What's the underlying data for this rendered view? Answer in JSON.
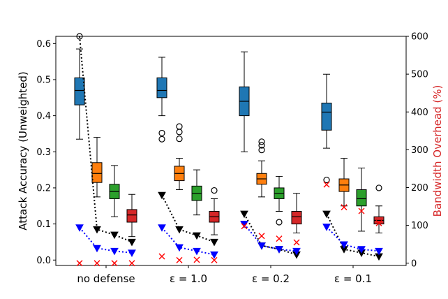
{
  "chart_data": {
    "type": "box",
    "title": "",
    "ylabel": "Attack Accuracy (Unweighted)",
    "y2label": "Bandwidth Overhead (%)",
    "ylim": [
      -0.015,
      0.62
    ],
    "y2lim": [
      -6,
      600
    ],
    "yticks": [
      "0.0",
      "0.1",
      "0.2",
      "0.3",
      "0.4",
      "0.5",
      "0.6"
    ],
    "y2ticks": [
      "0",
      "100",
      "200",
      "300",
      "400",
      "500",
      "600"
    ],
    "groups": [
      "no defense",
      "ε = 1.0",
      "ε = 0.2",
      "ε = 0.1"
    ],
    "series_colors": [
      "#1f77b4",
      "#ff7f0e",
      "#2ca02c",
      "#d62728"
    ],
    "boxes": [
      [
        {
          "min": 0.335,
          "q1": 0.43,
          "median": 0.47,
          "q3": 0.505,
          "max": 0.585,
          "outliers": [
            0.62
          ]
        },
        {
          "min": 0.175,
          "q1": 0.215,
          "median": 0.24,
          "q3": 0.27,
          "max": 0.34,
          "outliers": []
        },
        {
          "min": 0.12,
          "q1": 0.17,
          "median": 0.19,
          "q3": 0.21,
          "max": 0.262,
          "outliers": []
        },
        {
          "min": 0.065,
          "q1": 0.105,
          "median": 0.125,
          "q3": 0.14,
          "max": 0.182,
          "outliers": []
        }
      ],
      [
        {
          "min": 0.4,
          "q1": 0.45,
          "median": 0.47,
          "q3": 0.505,
          "max": 0.562,
          "outliers": [
            0.352,
            0.335
          ]
        },
        {
          "min": 0.195,
          "q1": 0.22,
          "median": 0.24,
          "q3": 0.26,
          "max": 0.282,
          "outliers": [
            0.37,
            0.355,
            0.336
          ]
        },
        {
          "min": 0.125,
          "q1": 0.165,
          "median": 0.185,
          "q3": 0.205,
          "max": 0.25,
          "outliers": []
        },
        {
          "min": 0.07,
          "q1": 0.105,
          "median": 0.12,
          "q3": 0.135,
          "max": 0.17,
          "outliers": [
            0.193
          ]
        }
      ],
      [
        {
          "min": 0.3,
          "q1": 0.4,
          "median": 0.44,
          "q3": 0.48,
          "max": 0.577,
          "outliers": []
        },
        {
          "min": 0.175,
          "q1": 0.21,
          "median": 0.225,
          "q3": 0.24,
          "max": 0.275,
          "outliers": [
            0.328,
            0.318,
            0.305
          ]
        },
        {
          "min": 0.135,
          "q1": 0.17,
          "median": 0.185,
          "q3": 0.2,
          "max": 0.232,
          "outliers": [
            0.105
          ]
        },
        {
          "min": 0.075,
          "q1": 0.1,
          "median": 0.12,
          "q3": 0.135,
          "max": 0.185,
          "outliers": []
        }
      ],
      [
        {
          "min": 0.31,
          "q1": 0.36,
          "median": 0.41,
          "q3": 0.435,
          "max": 0.515,
          "outliers": [
            0.222
          ]
        },
        {
          "min": 0.15,
          "q1": 0.19,
          "median": 0.208,
          "q3": 0.225,
          "max": 0.282,
          "outliers": []
        },
        {
          "min": 0.08,
          "q1": 0.15,
          "median": 0.17,
          "q3": 0.195,
          "max": 0.255,
          "outliers": []
        },
        {
          "min": 0.075,
          "q1": 0.1,
          "median": 0.11,
          "q3": 0.12,
          "max": 0.15,
          "outliers": [
            0.2
          ]
        }
      ]
    ],
    "black_triangle_lines": [
      [
        0.62,
        0.085,
        0.07,
        0.05
      ],
      [
        0.18,
        0.085,
        0.068,
        0.05
      ],
      [
        0.128,
        0.04,
        0.03,
        0.015
      ],
      [
        0.128,
        0.03,
        0.02,
        0.01
      ]
    ],
    "blue_triangle_lines": [
      [
        0.09,
        0.033,
        0.025,
        0.02
      ],
      [
        0.09,
        0.035,
        0.025,
        0.015
      ],
      [
        0.1,
        0.04,
        0.03,
        0.025
      ],
      [
        0.092,
        0.043,
        0.03,
        0.025
      ]
    ],
    "red_x_overhead": [
      [
        0,
        0,
        0,
        0
      ],
      [
        18,
        8,
        9,
        8
      ],
      [
        98,
        72,
        65,
        55
      ],
      [
        208,
        148,
        138,
        106
      ]
    ]
  }
}
